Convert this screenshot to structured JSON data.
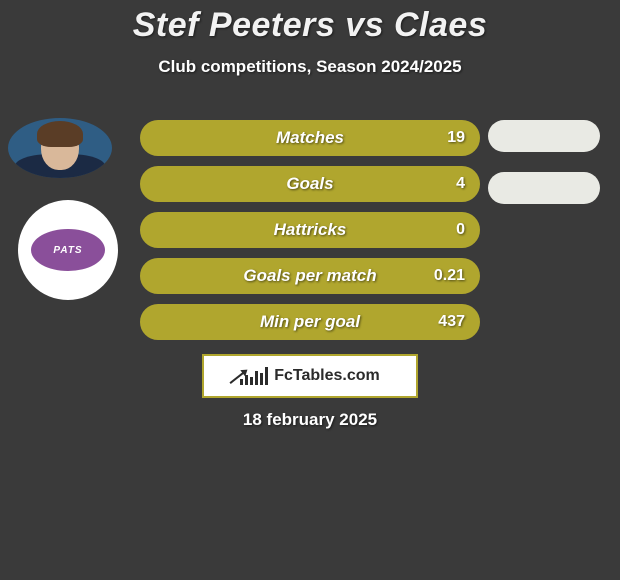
{
  "background_color": "#3a3a3a",
  "text_color": "#ffffff",
  "title": "Stef Peeters vs Claes",
  "title_color": "#f2f2f2",
  "title_fontsize": 34,
  "subtitle": "Club competitions, Season 2024/2025",
  "subtitle_fontsize": 17,
  "date": "18 february 2025",
  "avatar1": {
    "sky_color": "#2f5d84",
    "skin_color": "#d9b89a",
    "hair_color": "#5a3d26",
    "shirt_color": "#1b2a44"
  },
  "avatar2": {
    "bg_color": "#ffffff",
    "badge_color": "#8a4f9a",
    "badge_text_color": "#ffffff",
    "badge_text": "PATS"
  },
  "right_pills": {
    "count": 2,
    "color": "#e9eae4"
  },
  "stat_bar": {
    "fill_color": "#b0a62e",
    "border_color": "#b0a62e",
    "label_color": "#ffffff",
    "value_color": "#ffffff",
    "height": 36,
    "radius": 18
  },
  "stats": [
    {
      "label": "Matches",
      "value": "19"
    },
    {
      "label": "Goals",
      "value": "4"
    },
    {
      "label": "Hattricks",
      "value": "0"
    },
    {
      "label": "Goals per match",
      "value": "0.21"
    },
    {
      "label": "Min per goal",
      "value": "437"
    }
  ],
  "logo": {
    "box_border_color": "#b0a62e",
    "bars_color": "#2b2b2b",
    "arrow_color": "#2b2b2b",
    "text": "FcTables.com",
    "text_color": "#2b2b2b",
    "box_bg": "#ffffff",
    "bars_heights": [
      6,
      10,
      8,
      14,
      12,
      18
    ]
  }
}
